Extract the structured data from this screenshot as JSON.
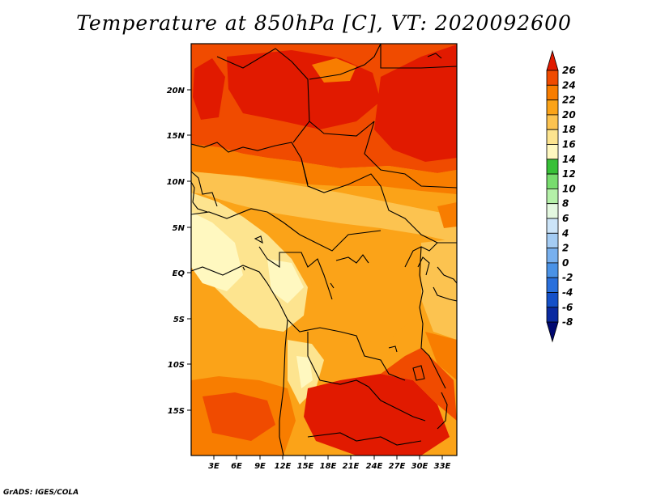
{
  "title": "Temperature at 850hPa [C], VT: 2020092600",
  "credit": "GrADS: IGES/COLA",
  "lat_labels": [
    "20N",
    "15N",
    "10N",
    "5N",
    "EQ",
    "5S",
    "10S",
    "15S"
  ],
  "lon_labels": [
    "3E",
    "6E",
    "9E",
    "12E",
    "15E",
    "18E",
    "21E",
    "24E",
    "27E",
    "30E",
    "33E"
  ],
  "colorbar": {
    "labels": [
      "26",
      "24",
      "22",
      "20",
      "18",
      "16",
      "14",
      "12",
      "10",
      "8",
      "6",
      "4",
      "2",
      "0",
      "-2",
      "-4",
      "-6",
      "-8"
    ],
    "colors": [
      "#e11a00",
      "#f04b00",
      "#f87d00",
      "#fba318",
      "#fcc350",
      "#fde48f",
      "#fff8c0",
      "#38c038",
      "#78dc6e",
      "#b4f0a8",
      "#e4f8e0",
      "#cce4f8",
      "#a4ccf4",
      "#78b0ee",
      "#4a92e6",
      "#2a70dc",
      "#1450c8",
      "#0a2aa0",
      "#000870"
    ]
  }
}
